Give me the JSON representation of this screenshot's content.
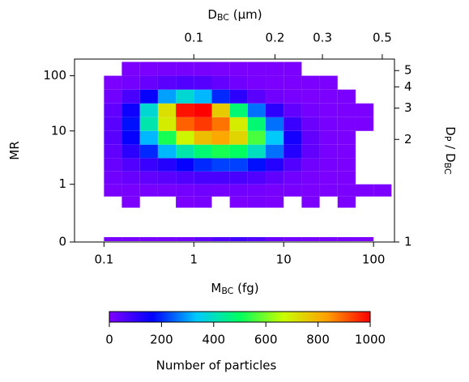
{
  "chart_data": {
    "type": "heatmap",
    "xlabel": [
      {
        "text": "M"
      },
      {
        "text": "BC",
        "sub": true
      },
      {
        "text": " (fg)"
      }
    ],
    "x2label": [
      {
        "text": "D"
      },
      {
        "text": "BC",
        "sub": true
      },
      {
        "text": " (µm)"
      }
    ],
    "ylabel": [
      {
        "text": "MR"
      }
    ],
    "y2label": [
      {
        "text": "D"
      },
      {
        "text": "P",
        "sub": true
      },
      {
        "text": " / D"
      },
      {
        "text": "BC",
        "sub": true
      }
    ],
    "colorbar_label": "Number of particles",
    "xscale": "log",
    "xlim": [
      0.047,
      171
    ],
    "xticks": [
      {
        "value": 0.1,
        "label": "0.1"
      },
      1,
      10,
      100
    ],
    "x2scale": "log",
    "x2lim": [
      0.0361,
      0.555
    ],
    "x2ticks": [
      {
        "value": 0.1,
        "label": "0.1"
      },
      {
        "value": 0.2,
        "label": "0.2"
      },
      {
        "value": 0.3,
        "label": "0.3"
      },
      {
        "value": 0.5,
        "label": "0.5"
      }
    ],
    "yscale": "log-offset",
    "ylog_offset": 0.1,
    "ylim": [
      0,
      200
    ],
    "yticks": [
      0,
      1,
      10,
      100
    ],
    "y2ticks": [
      1,
      2,
      3,
      4,
      5
    ],
    "x_bins": [
      0.063,
      0.1,
      0.158,
      0.251,
      0.398,
      0.631,
      1,
      1.585,
      2.512,
      3.981,
      6.31,
      10,
      15.85,
      25.12,
      39.81,
      63.1,
      100,
      158.5
    ],
    "y_bins": [
      0.316,
      0.562,
      1,
      1.778,
      3.162,
      5.623,
      10,
      17.78,
      31.62,
      56.23,
      100,
      177.8
    ],
    "z": [
      [
        0,
        0,
        5,
        0,
        0,
        5,
        10,
        0,
        5,
        10,
        5,
        0,
        5,
        0,
        5,
        0,
        0
      ],
      [
        0,
        10,
        10,
        10,
        10,
        15,
        20,
        15,
        20,
        15,
        10,
        10,
        5,
        5,
        5,
        5,
        5
      ],
      [
        0,
        20,
        30,
        40,
        50,
        60,
        70,
        70,
        70,
        60,
        40,
        20,
        10,
        5,
        5,
        0,
        0
      ],
      [
        0,
        30,
        60,
        90,
        120,
        160,
        200,
        220,
        220,
        180,
        120,
        60,
        20,
        10,
        5,
        0,
        0
      ],
      [
        0,
        40,
        110,
        200,
        320,
        420,
        480,
        520,
        500,
        400,
        260,
        120,
        40,
        10,
        5,
        0,
        0
      ],
      [
        0,
        50,
        160,
        320,
        520,
        680,
        780,
        820,
        740,
        560,
        340,
        140,
        40,
        10,
        5,
        0,
        0
      ],
      [
        0,
        50,
        180,
        420,
        700,
        900,
        940,
        880,
        700,
        480,
        260,
        90,
        25,
        10,
        5,
        5,
        0
      ],
      [
        0,
        40,
        150,
        380,
        720,
        980,
        1000,
        760,
        480,
        260,
        110,
        40,
        15,
        5,
        5,
        5,
        0
      ],
      [
        0,
        20,
        70,
        160,
        300,
        380,
        320,
        200,
        110,
        50,
        20,
        10,
        5,
        5,
        5,
        0,
        0
      ],
      [
        0,
        5,
        15,
        30,
        50,
        60,
        55,
        35,
        20,
        10,
        5,
        5,
        5,
        5,
        0,
        0,
        0
      ],
      [
        0,
        0,
        5,
        5,
        10,
        10,
        10,
        5,
        5,
        5,
        5,
        5,
        0,
        0,
        0,
        0,
        0
      ]
    ],
    "zero_row": [
      0,
      10,
      10,
      10,
      15,
      20,
      40,
      60,
      80,
      60,
      30,
      20,
      15,
      10,
      10,
      5,
      0
    ],
    "clim": [
      0,
      1000
    ],
    "cticks": [
      0,
      200,
      400,
      600,
      800,
      1000
    ],
    "colormap": [
      "#7f00ff",
      "#0000ff",
      "#00c8ff",
      "#00ff60",
      "#c8ff00",
      "#ffa000",
      "#ff0000"
    ]
  }
}
